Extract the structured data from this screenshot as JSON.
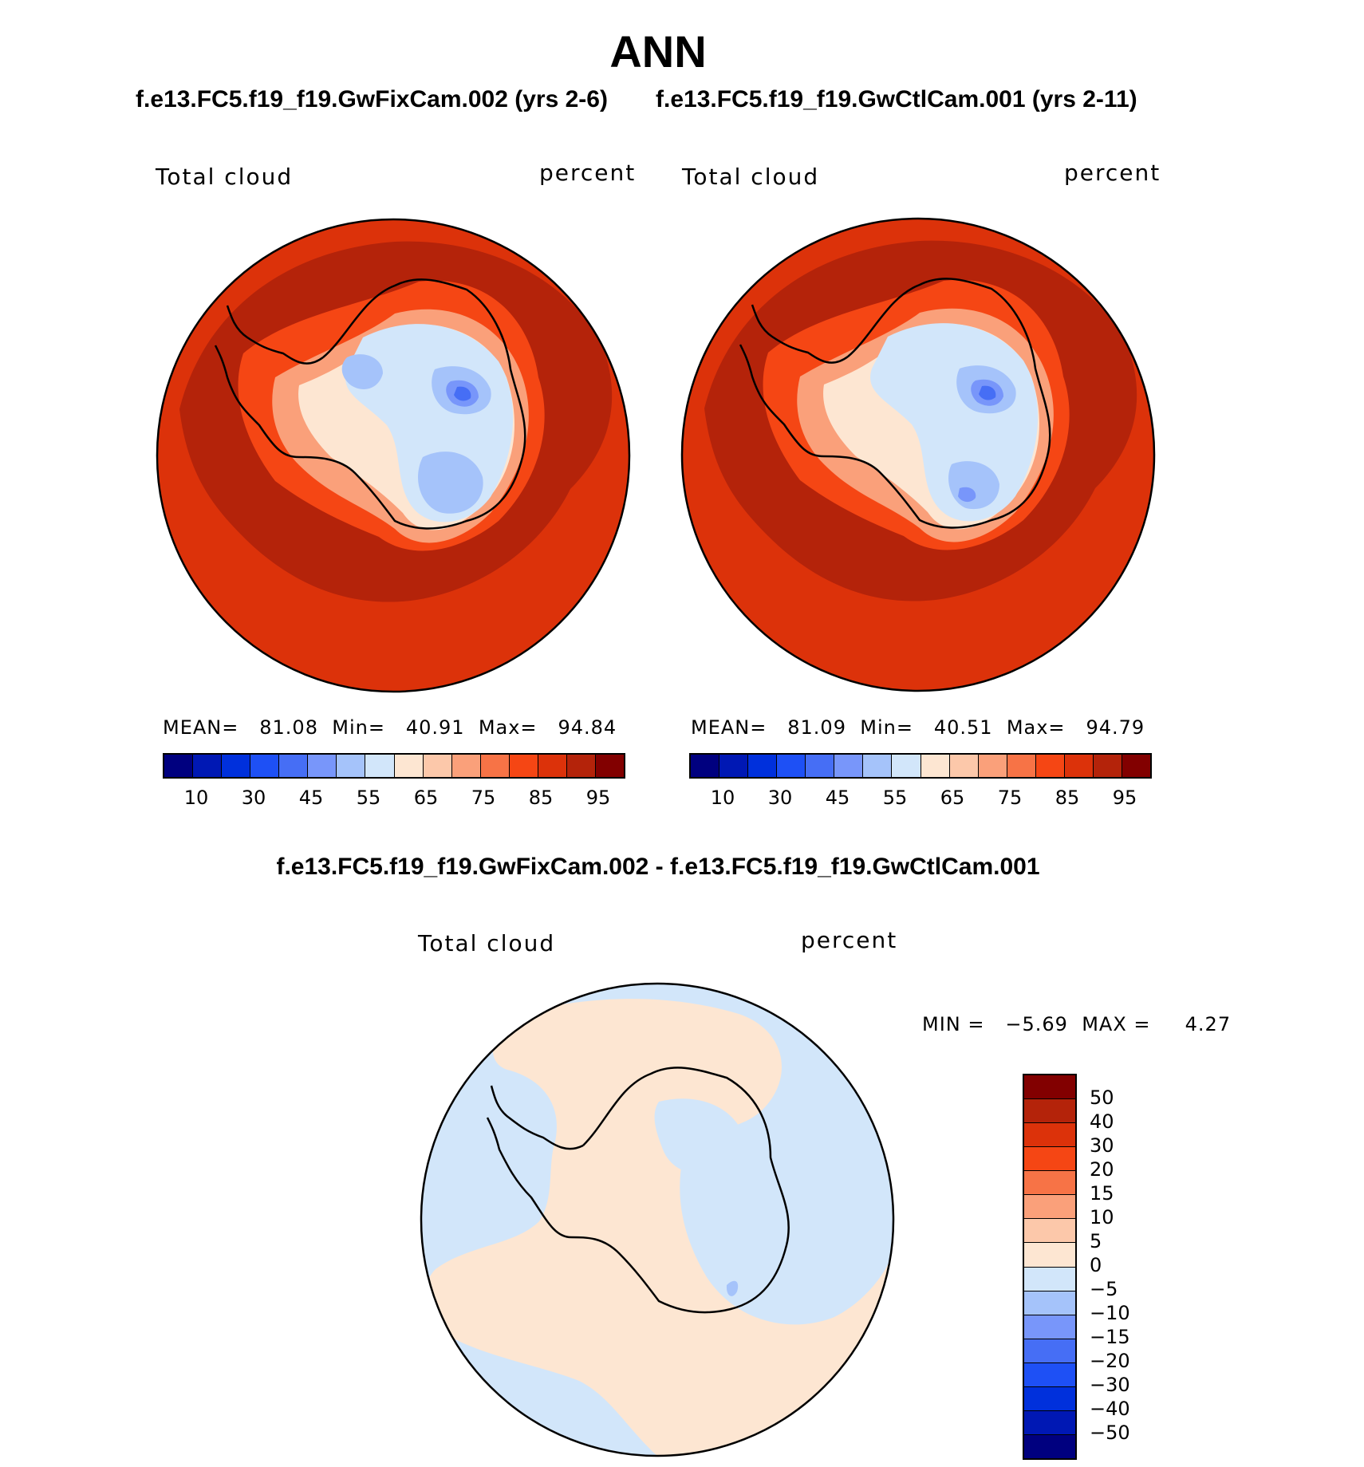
{
  "title": "ANN",
  "left_panel": {
    "case_title": "f.e13.FC5.f19_f19.GwFixCam.002 (yrs 2-6)",
    "field_label": "Total cloud",
    "units": "percent",
    "stats": {
      "mean_label": "MEAN=",
      "mean": "81.08",
      "min_label": "Min=",
      "min": "40.91",
      "max_label": "Max=",
      "max": "94.84"
    }
  },
  "right_panel": {
    "case_title": "f.e13.FC5.f19_f19.GwCtlCam.001 (yrs 2-11)",
    "field_label": "Total cloud",
    "units": "percent",
    "stats": {
      "mean_label": "MEAN=",
      "mean": "81.09",
      "min_label": "Min=",
      "min": "40.51",
      "max_label": "Max=",
      "max": "94.79"
    }
  },
  "abs_colorbar": {
    "colors": [
      "#00007f",
      "#0018b4",
      "#0030dc",
      "#1e50f5",
      "#466ef5",
      "#7896fa",
      "#a5c3fa",
      "#d2e6fa",
      "#fde6d2",
      "#fcc8aa",
      "#faa07a",
      "#f77346",
      "#f54614",
      "#dc320a",
      "#b4230a",
      "#820000"
    ],
    "ticks": [
      "10",
      "30",
      "45",
      "55",
      "65",
      "75",
      "85",
      "95"
    ]
  },
  "diff_panel": {
    "title": "f.e13.FC5.f19_f19.GwFixCam.002 - f.e13.FC5.f19_f19.GwCtlCam.001",
    "field_label": "Total cloud",
    "units": "percent",
    "min_label": "MIN =",
    "min": "−5.69",
    "max_label": "MAX =",
    "max": "4.27"
  },
  "diff_colorbar": {
    "colors": [
      "#820000",
      "#b4230a",
      "#dc320a",
      "#f54614",
      "#f77346",
      "#faa07a",
      "#fcc8aa",
      "#fde6d2",
      "#d2e6fa",
      "#a5c3fa",
      "#7896fa",
      "#466ef5",
      "#1e50f5",
      "#0030dc",
      "#0018b4",
      "#00007f"
    ],
    "ticks": [
      "50",
      "40",
      "30",
      "20",
      "15",
      "10",
      "5",
      "0",
      "−5",
      "−10",
      "−15",
      "−20",
      "−30",
      "−40",
      "−50"
    ]
  },
  "map_colors": {
    "ocean_dark": "#b4230a",
    "ocean": "#dc320a",
    "coast_band1": "#f54614",
    "coast_band2": "#faa07a",
    "coast_band3": "#fde6d2",
    "land_light": "#d2e6fa",
    "land_mid": "#a5c3fa",
    "land_low": "#7896fa",
    "land_lowest": "#466ef5",
    "diff_pos": "#fde6d2",
    "diff_neg": "#d2e6fa",
    "diff_neg2": "#a5c3fa"
  }
}
